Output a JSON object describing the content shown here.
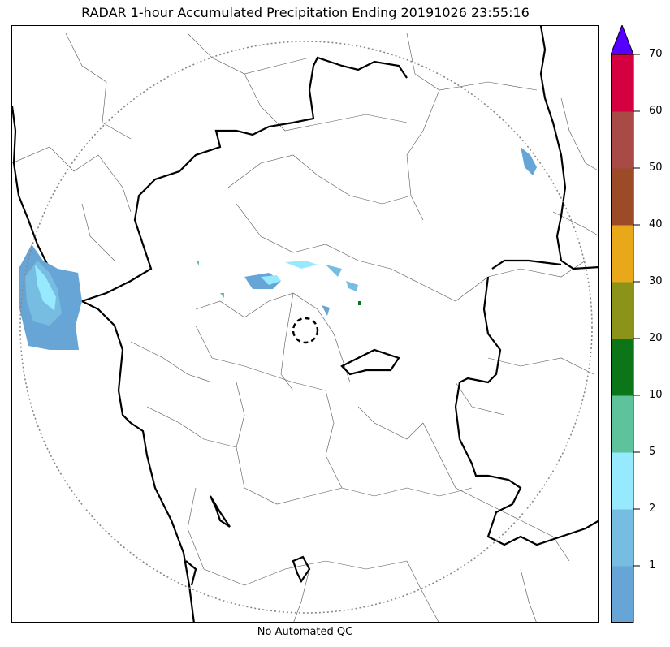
{
  "header": {
    "title": "RADAR 1-hour Accumulated Precipitation Ending 20191026 23:55:16"
  },
  "footer": {
    "qc_note": "No Automated QC"
  },
  "colorbar": {
    "extend_color": "#5500ff",
    "levels": [
      {
        "label": "",
        "color": "#66a5d6"
      },
      {
        "label": "1",
        "color": "#77bde2"
      },
      {
        "label": "2",
        "color": "#97e9fe"
      },
      {
        "label": "5",
        "color": "#5ec39c"
      },
      {
        "label": "10",
        "color": "#0c7518"
      },
      {
        "label": "20",
        "color": "#8b9418"
      },
      {
        "label": "30",
        "color": "#e8a81a"
      },
      {
        "label": "40",
        "color": "#9b4b28"
      },
      {
        "label": "50",
        "color": "#a84a46"
      },
      {
        "label": "60",
        "color": "#d40040"
      }
    ],
    "top_label": "70"
  },
  "map": {
    "radar_range_ring": "dotted circle",
    "site_marker": "dashed circle",
    "boundary_colors": {
      "state": "#000000",
      "district": "#555555"
    }
  }
}
